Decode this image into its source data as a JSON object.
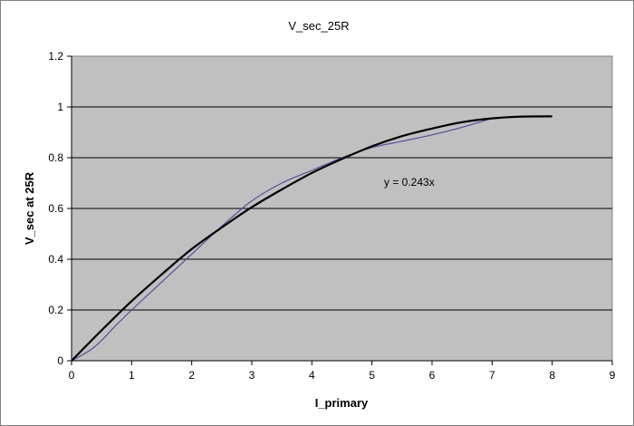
{
  "chart_data": {
    "type": "line",
    "title": "V_sec_25R",
    "xlabel": "I_primary",
    "ylabel": "V_sec at 25R",
    "xlim": [
      0,
      9
    ],
    "ylim": [
      0,
      1.2
    ],
    "x_ticks": [
      "0",
      "1",
      "2",
      "3",
      "4",
      "5",
      "6",
      "7",
      "8",
      "9"
    ],
    "y_ticks": [
      "0",
      "0.2",
      "0.4",
      "0.6",
      "0.8",
      "1",
      "1.2"
    ],
    "grid": "horizontal",
    "plot_background": "#c0c0c0",
    "annotation": "y = 0.243x",
    "series": [
      {
        "color": "#5050a0",
        "x": [
          0,
          0.3,
          0.5,
          0.7,
          1,
          1.5,
          2,
          2.5,
          3,
          3.5,
          4,
          4.5,
          5,
          5.5,
          6,
          6.5,
          7
        ],
        "y": [
          0,
          0.04,
          0.08,
          0.13,
          0.2,
          0.31,
          0.42,
          0.53,
          0.63,
          0.7,
          0.75,
          0.8,
          0.84,
          0.865,
          0.89,
          0.92,
          0.955
        ]
      },
      {
        "color": "#000000",
        "x": [
          0,
          0.5,
          1,
          1.5,
          2,
          2.5,
          3,
          3.5,
          4,
          4.5,
          5,
          5.5,
          6,
          6.5,
          7,
          7.5,
          8
        ],
        "y": [
          0,
          0.12,
          0.235,
          0.34,
          0.44,
          0.525,
          0.605,
          0.675,
          0.74,
          0.795,
          0.845,
          0.885,
          0.915,
          0.94,
          0.955,
          0.962,
          0.963
        ]
      }
    ]
  }
}
